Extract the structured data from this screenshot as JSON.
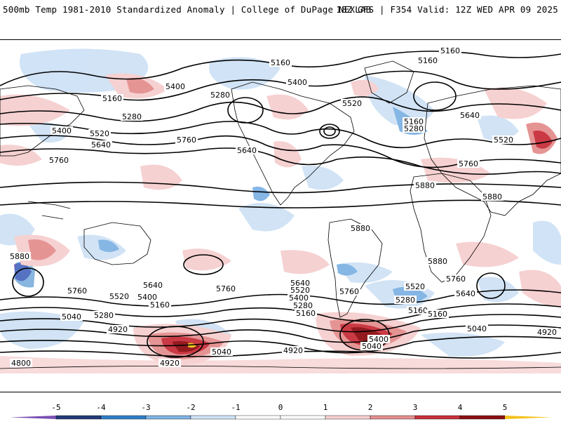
{
  "header": {
    "title": "500mb Temp 1981-2010 Standardized Anomaly | College of DuPage NEXLAB",
    "run_info": "18Z GFS | F354 Valid: 12Z WED APR 09 2025"
  },
  "colorbar": {
    "ticks": [
      "-5",
      "-4",
      "-3",
      "-2",
      "-1",
      "0",
      "1",
      "2",
      "3",
      "4",
      "5"
    ],
    "colors": [
      "#7a4fb3",
      "#243a78",
      "#2e7fc8",
      "#7fb3e3",
      "#cfe2f5",
      "#ffffff",
      "#ffffff",
      "#f6cfcf",
      "#e48f8f",
      "#c8303a",
      "#8e0f14",
      "#f3c21c"
    ]
  },
  "contours": {
    "labels": [
      {
        "text": "5160"
      },
      {
        "text": "5160"
      },
      {
        "text": "5400"
      },
      {
        "text": "5160"
      },
      {
        "text": "5280"
      },
      {
        "text": "5400"
      },
      {
        "text": "5520"
      },
      {
        "text": "5640"
      },
      {
        "text": "5760"
      },
      {
        "text": "5280"
      },
      {
        "text": "5400"
      },
      {
        "text": "5520"
      },
      {
        "text": "5640"
      },
      {
        "text": "5760"
      },
      {
        "text": "5160"
      },
      {
        "text": "5160"
      },
      {
        "text": "5640"
      },
      {
        "text": "5280"
      },
      {
        "text": "5520"
      },
      {
        "text": "5760"
      },
      {
        "text": "5880"
      },
      {
        "text": "5880"
      },
      {
        "text": "5880"
      },
      {
        "text": "5880"
      },
      {
        "text": "5880"
      },
      {
        "text": "5760"
      },
      {
        "text": "5640"
      },
      {
        "text": "5760"
      },
      {
        "text": "5520"
      },
      {
        "text": "5400"
      },
      {
        "text": "5160"
      },
      {
        "text": "5040"
      },
      {
        "text": "5280"
      },
      {
        "text": "4920"
      },
      {
        "text": "4800"
      },
      {
        "text": "5040"
      },
      {
        "text": "4920"
      },
      {
        "text": "5640"
      },
      {
        "text": "5520"
      },
      {
        "text": "5400"
      },
      {
        "text": "5160"
      },
      {
        "text": "5280"
      },
      {
        "text": "5760"
      },
      {
        "text": "5160"
      },
      {
        "text": "4920"
      },
      {
        "text": "5400"
      },
      {
        "text": "5040"
      },
      {
        "text": "5520"
      },
      {
        "text": "5280"
      },
      {
        "text": "5160"
      },
      {
        "text": "5760"
      },
      {
        "text": "5640"
      },
      {
        "text": "5040"
      },
      {
        "text": "4920"
      }
    ]
  }
}
